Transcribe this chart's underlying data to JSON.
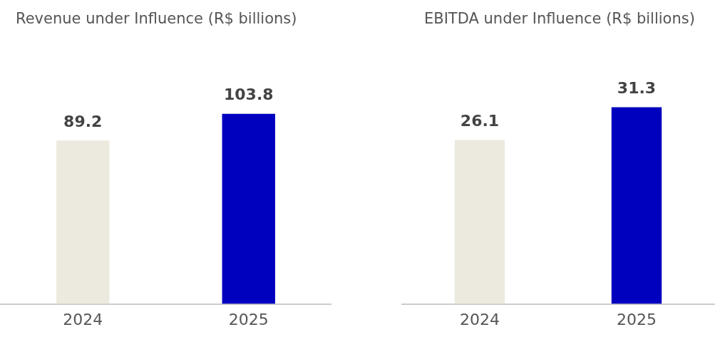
{
  "chart_data": [
    {
      "type": "bar",
      "title": "Revenue under Influence (R$ billions)",
      "categories": [
        "2024",
        "2025"
      ],
      "values": [
        89.2,
        103.8
      ],
      "colors": [
        "#ece9df",
        "#0000bf"
      ],
      "data_labels": true
    },
    {
      "type": "bar",
      "title": "EBITDA under Influence (R$ billions)",
      "categories": [
        "2024",
        "2025"
      ],
      "values": [
        26.1,
        31.3
      ],
      "colors": [
        "#ece9df",
        "#0000bf"
      ],
      "data_labels": true
    }
  ]
}
